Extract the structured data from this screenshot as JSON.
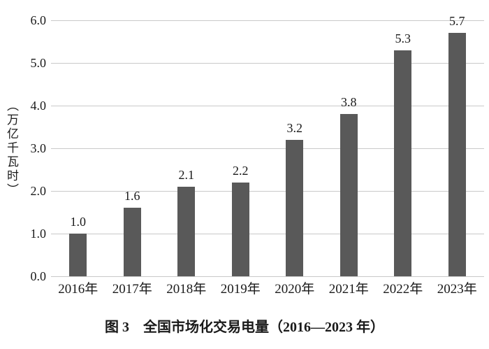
{
  "figure": {
    "caption": "图 3　全国市场化交易电量（2016—2023 年）"
  },
  "chart_data": {
    "type": "bar",
    "title": "图 3　全国市场化交易电量（2016—2023 年）",
    "xlabel": "",
    "ylabel": "（万亿千瓦时）",
    "categories": [
      "2016年",
      "2017年",
      "2018年",
      "2019年",
      "2020年",
      "2021年",
      "2022年",
      "2023年"
    ],
    "values": [
      1.0,
      1.6,
      2.1,
      2.2,
      3.2,
      3.8,
      5.3,
      5.7
    ],
    "value_labels": [
      "1.0",
      "1.6",
      "2.1",
      "2.2",
      "3.2",
      "3.8",
      "5.3",
      "5.7"
    ],
    "ylim": [
      0,
      6
    ],
    "ytick_step": 1,
    "ytick_labels": [
      "0.0",
      "1.0",
      "2.0",
      "3.0",
      "4.0",
      "5.0",
      "6.0"
    ],
    "grid": true,
    "legend": "none",
    "bar_color": "#595959",
    "grid_color": "#c9c9c9",
    "text_color": "#1a1a1a"
  }
}
